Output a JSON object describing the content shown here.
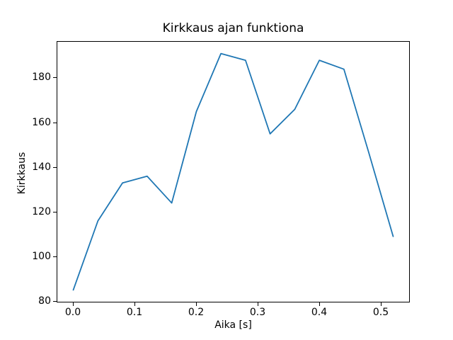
{
  "figure": {
    "background_color": "#ffffff",
    "text_color": "#000000"
  },
  "chart_data": {
    "type": "line",
    "title": "Kirkkaus ajan funktiona",
    "xlabel": "Aika [s]",
    "ylabel": "Kirkkaus",
    "x": [
      0.0,
      0.04,
      0.08,
      0.12,
      0.16,
      0.2,
      0.24,
      0.28,
      0.32,
      0.36,
      0.4,
      0.44,
      0.48,
      0.52
    ],
    "y": [
      85,
      116,
      133,
      136,
      124,
      165,
      191,
      188,
      155,
      166,
      188,
      184,
      147,
      109
    ],
    "line_color": "#1f77b4",
    "line_width": 1.8,
    "xlim": [
      -0.026,
      0.546
    ],
    "ylim": [
      79.7,
      196.3
    ],
    "xticks": [
      0.0,
      0.1,
      0.2,
      0.3,
      0.4,
      0.5
    ],
    "xtick_labels": [
      "0.0",
      "0.1",
      "0.2",
      "0.3",
      "0.4",
      "0.5"
    ],
    "yticks": [
      80,
      100,
      120,
      140,
      160,
      180
    ],
    "ytick_labels": [
      "80",
      "100",
      "120",
      "140",
      "160",
      "180"
    ],
    "grid": false,
    "legend_position": "none"
  }
}
